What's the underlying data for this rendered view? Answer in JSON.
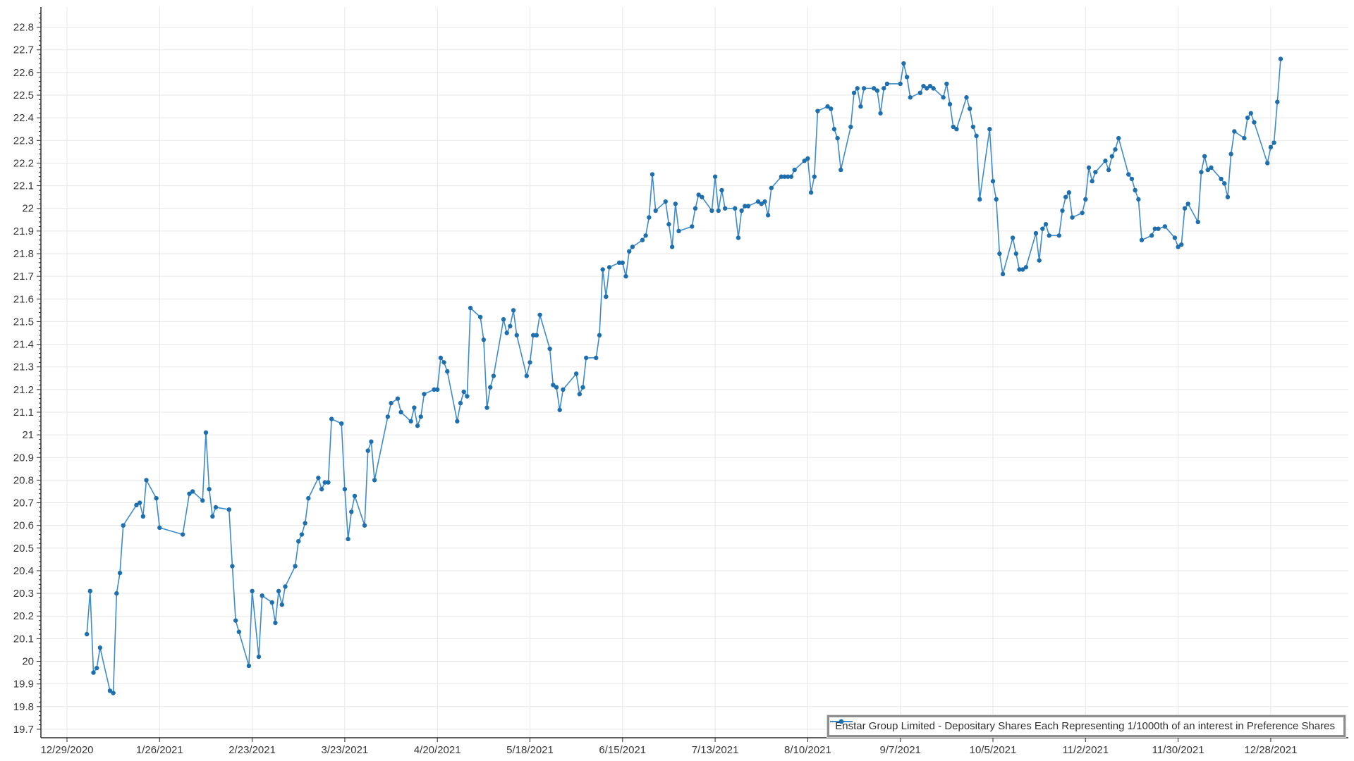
{
  "chart_data": {
    "type": "line",
    "title": "",
    "xlabel": "",
    "ylabel": "",
    "grid": true,
    "legend_position": "bottom-right",
    "marker_style": "circle",
    "line_color": "#3f8bc9",
    "marker_color": "#1e6fae",
    "grid_color": "#e7e7e7",
    "axis_color": "#2b2b2b",
    "y_axis": {
      "min": 19.7,
      "max": 22.8,
      "tick_step": 0.1,
      "minor_tick_step": 0.02,
      "top_padding_value": 22.88
    },
    "x_axis": {
      "start_date": "12/29/2020",
      "tick_interval_days": 28,
      "tick_labels": [
        "12/29/2020",
        "1/26/2021",
        "2/23/2021",
        "3/23/2021",
        "4/20/2021",
        "5/18/2021",
        "6/15/2021",
        "7/13/2021",
        "8/10/2021",
        "9/7/2021",
        "10/5/2021",
        "11/2/2021",
        "11/30/2021",
        "12/28/2021"
      ]
    },
    "series": [
      {
        "name": "Enstar Group Limited - Depositary Shares Each Representing 1/1000th of an interest in Preference Shares",
        "points": [
          [
            "1/4/2021",
            20.12
          ],
          [
            "1/5/2021",
            20.31
          ],
          [
            "1/6/2021",
            19.95
          ],
          [
            "1/7/2021",
            19.97
          ],
          [
            "1/8/2021",
            20.06
          ],
          [
            "1/11/2021",
            19.87
          ],
          [
            "1/12/2021",
            19.86
          ],
          [
            "1/13/2021",
            20.3
          ],
          [
            "1/14/2021",
            20.39
          ],
          [
            "1/15/2021",
            20.6
          ],
          [
            "1/19/2021",
            20.69
          ],
          [
            "1/20/2021",
            20.7
          ],
          [
            "1/21/2021",
            20.64
          ],
          [
            "1/22/2021",
            20.8
          ],
          [
            "1/25/2021",
            20.72
          ],
          [
            "1/26/2021",
            20.59
          ],
          [
            "2/2/2021",
            20.56
          ],
          [
            "2/4/2021",
            20.74
          ],
          [
            "2/5/2021",
            20.75
          ],
          [
            "2/8/2021",
            20.71
          ],
          [
            "2/9/2021",
            21.01
          ],
          [
            "2/10/2021",
            20.76
          ],
          [
            "2/11/2021",
            20.64
          ],
          [
            "2/12/2021",
            20.68
          ],
          [
            "2/16/2021",
            20.67
          ],
          [
            "2/17/2021",
            20.42
          ],
          [
            "2/18/2021",
            20.18
          ],
          [
            "2/19/2021",
            20.13
          ],
          [
            "2/22/2021",
            19.98
          ],
          [
            "2/23/2021",
            20.31
          ],
          [
            "2/25/2021",
            20.02
          ],
          [
            "2/26/2021",
            20.29
          ],
          [
            "3/1/2021",
            20.26
          ],
          [
            "3/2/2021",
            20.17
          ],
          [
            "3/3/2021",
            20.31
          ],
          [
            "3/4/2021",
            20.25
          ],
          [
            "3/5/2021",
            20.33
          ],
          [
            "3/8/2021",
            20.42
          ],
          [
            "3/9/2021",
            20.53
          ],
          [
            "3/10/2021",
            20.56
          ],
          [
            "3/11/2021",
            20.61
          ],
          [
            "3/12/2021",
            20.72
          ],
          [
            "3/15/2021",
            20.81
          ],
          [
            "3/16/2021",
            20.76
          ],
          [
            "3/17/2021",
            20.79
          ],
          [
            "3/18/2021",
            20.79
          ],
          [
            "3/19/2021",
            21.07
          ],
          [
            "3/22/2021",
            21.05
          ],
          [
            "3/23/2021",
            20.76
          ],
          [
            "3/24/2021",
            20.54
          ],
          [
            "3/25/2021",
            20.66
          ],
          [
            "3/26/2021",
            20.73
          ],
          [
            "3/29/2021",
            20.6
          ],
          [
            "3/30/2021",
            20.93
          ],
          [
            "3/31/2021",
            20.97
          ],
          [
            "4/1/2021",
            20.8
          ],
          [
            "4/5/2021",
            21.08
          ],
          [
            "4/6/2021",
            21.14
          ],
          [
            "4/8/2021",
            21.16
          ],
          [
            "4/9/2021",
            21.1
          ],
          [
            "4/12/2021",
            21.06
          ],
          [
            "4/13/2021",
            21.12
          ],
          [
            "4/14/2021",
            21.04
          ],
          [
            "4/15/2021",
            21.08
          ],
          [
            "4/16/2021",
            21.18
          ],
          [
            "4/19/2021",
            21.2
          ],
          [
            "4/20/2021",
            21.2
          ],
          [
            "4/21/2021",
            21.34
          ],
          [
            "4/22/2021",
            21.32
          ],
          [
            "4/23/2021",
            21.28
          ],
          [
            "4/26/2021",
            21.06
          ],
          [
            "4/27/2021",
            21.14
          ],
          [
            "4/28/2021",
            21.19
          ],
          [
            "4/29/2021",
            21.17
          ],
          [
            "4/30/2021",
            21.56
          ],
          [
            "5/3/2021",
            21.52
          ],
          [
            "5/4/2021",
            21.42
          ],
          [
            "5/5/2021",
            21.12
          ],
          [
            "5/6/2021",
            21.21
          ],
          [
            "5/7/2021",
            21.26
          ],
          [
            "5/10/2021",
            21.51
          ],
          [
            "5/11/2021",
            21.45
          ],
          [
            "5/12/2021",
            21.48
          ],
          [
            "5/13/2021",
            21.55
          ],
          [
            "5/14/2021",
            21.44
          ],
          [
            "5/17/2021",
            21.26
          ],
          [
            "5/18/2021",
            21.32
          ],
          [
            "5/19/2021",
            21.44
          ],
          [
            "5/20/2021",
            21.44
          ],
          [
            "5/21/2021",
            21.53
          ],
          [
            "5/24/2021",
            21.38
          ],
          [
            "5/25/2021",
            21.22
          ],
          [
            "5/26/2021",
            21.21
          ],
          [
            "5/27/2021",
            21.11
          ],
          [
            "5/28/2021",
            21.2
          ],
          [
            "6/1/2021",
            21.27
          ],
          [
            "6/2/2021",
            21.18
          ],
          [
            "6/3/2021",
            21.21
          ],
          [
            "6/4/2021",
            21.34
          ],
          [
            "6/7/2021",
            21.34
          ],
          [
            "6/8/2021",
            21.44
          ],
          [
            "6/9/2021",
            21.73
          ],
          [
            "6/10/2021",
            21.61
          ],
          [
            "6/11/2021",
            21.74
          ],
          [
            "6/14/2021",
            21.76
          ],
          [
            "6/15/2021",
            21.76
          ],
          [
            "6/16/2021",
            21.7
          ],
          [
            "6/17/2021",
            21.81
          ],
          [
            "6/18/2021",
            21.83
          ],
          [
            "6/21/2021",
            21.86
          ],
          [
            "6/22/2021",
            21.88
          ],
          [
            "6/23/2021",
            21.96
          ],
          [
            "6/24/2021",
            22.15
          ],
          [
            "6/25/2021",
            21.99
          ],
          [
            "6/28/2021",
            22.03
          ],
          [
            "6/29/2021",
            21.93
          ],
          [
            "6/30/2021",
            21.83
          ],
          [
            "7/1/2021",
            22.02
          ],
          [
            "7/2/2021",
            21.9
          ],
          [
            "7/6/2021",
            21.92
          ],
          [
            "7/7/2021",
            22.0
          ],
          [
            "7/8/2021",
            22.06
          ],
          [
            "7/9/2021",
            22.05
          ],
          [
            "7/12/2021",
            21.99
          ],
          [
            "7/13/2021",
            22.14
          ],
          [
            "7/14/2021",
            21.99
          ],
          [
            "7/15/2021",
            22.08
          ],
          [
            "7/16/2021",
            22.0
          ],
          [
            "7/19/2021",
            22.0
          ],
          [
            "7/20/2021",
            21.87
          ],
          [
            "7/21/2021",
            21.99
          ],
          [
            "7/22/2021",
            22.01
          ],
          [
            "7/23/2021",
            22.01
          ],
          [
            "7/26/2021",
            22.03
          ],
          [
            "7/27/2021",
            22.02
          ],
          [
            "7/28/2021",
            22.03
          ],
          [
            "7/29/2021",
            21.97
          ],
          [
            "7/30/2021",
            22.09
          ],
          [
            "8/2/2021",
            22.14
          ],
          [
            "8/3/2021",
            22.14
          ],
          [
            "8/4/2021",
            22.14
          ],
          [
            "8/5/2021",
            22.14
          ],
          [
            "8/6/2021",
            22.17
          ],
          [
            "8/9/2021",
            22.21
          ],
          [
            "8/10/2021",
            22.22
          ],
          [
            "8/11/2021",
            22.07
          ],
          [
            "8/12/2021",
            22.14
          ],
          [
            "8/13/2021",
            22.43
          ],
          [
            "8/16/2021",
            22.45
          ],
          [
            "8/17/2021",
            22.44
          ],
          [
            "8/18/2021",
            22.35
          ],
          [
            "8/19/2021",
            22.31
          ],
          [
            "8/20/2021",
            22.17
          ],
          [
            "8/23/2021",
            22.36
          ],
          [
            "8/24/2021",
            22.51
          ],
          [
            "8/25/2021",
            22.53
          ],
          [
            "8/26/2021",
            22.45
          ],
          [
            "8/27/2021",
            22.53
          ],
          [
            "8/30/2021",
            22.53
          ],
          [
            "8/31/2021",
            22.52
          ],
          [
            "9/1/2021",
            22.42
          ],
          [
            "9/2/2021",
            22.53
          ],
          [
            "9/3/2021",
            22.55
          ],
          [
            "9/7/2021",
            22.55
          ],
          [
            "9/8/2021",
            22.64
          ],
          [
            "9/9/2021",
            22.58
          ],
          [
            "9/10/2021",
            22.49
          ],
          [
            "9/13/2021",
            22.51
          ],
          [
            "9/14/2021",
            22.54
          ],
          [
            "9/15/2021",
            22.53
          ],
          [
            "9/16/2021",
            22.54
          ],
          [
            "9/17/2021",
            22.53
          ],
          [
            "9/20/2021",
            22.49
          ],
          [
            "9/21/2021",
            22.55
          ],
          [
            "9/22/2021",
            22.46
          ],
          [
            "9/23/2021",
            22.36
          ],
          [
            "9/24/2021",
            22.35
          ],
          [
            "9/27/2021",
            22.49
          ],
          [
            "9/28/2021",
            22.44
          ],
          [
            "9/29/2021",
            22.36
          ],
          [
            "9/30/2021",
            22.32
          ],
          [
            "10/1/2021",
            22.04
          ],
          [
            "10/4/2021",
            22.35
          ],
          [
            "10/5/2021",
            22.12
          ],
          [
            "10/6/2021",
            22.04
          ],
          [
            "10/7/2021",
            21.8
          ],
          [
            "10/8/2021",
            21.71
          ],
          [
            "10/11/2021",
            21.87
          ],
          [
            "10/12/2021",
            21.8
          ],
          [
            "10/13/2021",
            21.73
          ],
          [
            "10/14/2021",
            21.73
          ],
          [
            "10/15/2021",
            21.74
          ],
          [
            "10/18/2021",
            21.89
          ],
          [
            "10/19/2021",
            21.77
          ],
          [
            "10/20/2021",
            21.91
          ],
          [
            "10/21/2021",
            21.93
          ],
          [
            "10/22/2021",
            21.88
          ],
          [
            "10/25/2021",
            21.88
          ],
          [
            "10/26/2021",
            21.99
          ],
          [
            "10/27/2021",
            22.05
          ],
          [
            "10/28/2021",
            22.07
          ],
          [
            "10/29/2021",
            21.96
          ],
          [
            "11/1/2021",
            21.98
          ],
          [
            "11/2/2021",
            22.04
          ],
          [
            "11/3/2021",
            22.18
          ],
          [
            "11/4/2021",
            22.12
          ],
          [
            "11/5/2021",
            22.16
          ],
          [
            "11/8/2021",
            22.21
          ],
          [
            "11/9/2021",
            22.17
          ],
          [
            "11/10/2021",
            22.23
          ],
          [
            "11/11/2021",
            22.26
          ],
          [
            "11/12/2021",
            22.31
          ],
          [
            "11/15/2021",
            22.15
          ],
          [
            "11/16/2021",
            22.13
          ],
          [
            "11/17/2021",
            22.08
          ],
          [
            "11/18/2021",
            22.04
          ],
          [
            "11/19/2021",
            21.86
          ],
          [
            "11/22/2021",
            21.88
          ],
          [
            "11/23/2021",
            21.91
          ],
          [
            "11/24/2021",
            21.91
          ],
          [
            "11/26/2021",
            21.92
          ],
          [
            "11/29/2021",
            21.87
          ],
          [
            "11/30/2021",
            21.83
          ],
          [
            "12/1/2021",
            21.84
          ],
          [
            "12/2/2021",
            22.0
          ],
          [
            "12/3/2021",
            22.02
          ],
          [
            "12/6/2021",
            21.94
          ],
          [
            "12/7/2021",
            22.16
          ],
          [
            "12/8/2021",
            22.23
          ],
          [
            "12/9/2021",
            22.17
          ],
          [
            "12/10/2021",
            22.18
          ],
          [
            "12/13/2021",
            22.13
          ],
          [
            "12/14/2021",
            22.11
          ],
          [
            "12/15/2021",
            22.05
          ],
          [
            "12/16/2021",
            22.24
          ],
          [
            "12/17/2021",
            22.34
          ],
          [
            "12/20/2021",
            22.31
          ],
          [
            "12/21/2021",
            22.4
          ],
          [
            "12/22/2021",
            22.42
          ],
          [
            "12/23/2021",
            22.38
          ],
          [
            "12/27/2021",
            22.2
          ],
          [
            "12/28/2021",
            22.27
          ],
          [
            "12/29/2021",
            22.29
          ],
          [
            "12/30/2021",
            22.47
          ],
          [
            "12/31/2021",
            22.66
          ]
        ]
      }
    ]
  },
  "legend": {
    "label": "Enstar Group Limited - Depositary Shares Each Representing 1/1000th of an interest in Preference Shares"
  }
}
